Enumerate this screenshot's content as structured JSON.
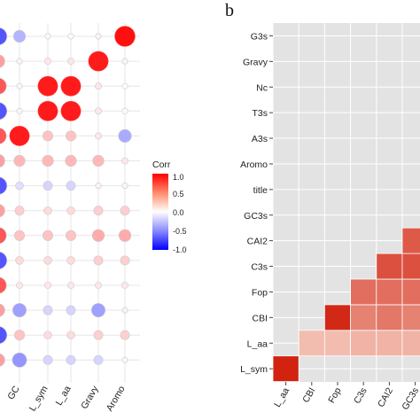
{
  "panel_label": "b",
  "legend": {
    "title": "Corr",
    "ticks": [
      "1.0",
      "0.5",
      "0.0",
      "-0.5",
      "-1.0"
    ]
  },
  "colors": {
    "negative": "#2b2bff",
    "neutral": "#ffffff",
    "positive": "#ff0f0f",
    "panel_bg": "#e3e3e3",
    "grid": "#ffffff",
    "text": "#222222"
  },
  "chart_data": [
    {
      "type": "scatter",
      "subtype": "correlogram",
      "title": "",
      "x": [
        "GC",
        "L_sym",
        "L_aa",
        "Gravy",
        "Aromo"
      ],
      "rows": [
        [
          -0.35,
          0.03,
          0.02,
          0.05,
          1.0
        ],
        [
          0.05,
          0.1,
          0.1,
          0.95,
          0.05
        ],
        [
          0.05,
          0.95,
          0.95,
          0.1,
          0.02
        ],
        [
          0.05,
          0.95,
          0.95,
          0.1,
          0.02
        ],
        [
          0.95,
          0.25,
          0.25,
          0.1,
          -0.4
        ],
        [
          0.3,
          0.3,
          0.3,
          0.3,
          0.1
        ],
        [
          -0.15,
          -0.2,
          -0.2,
          0.05,
          0.05
        ],
        [
          0.2,
          0.15,
          0.15,
          0.2,
          0.2
        ],
        [
          0.25,
          0.25,
          0.25,
          0.35,
          0.35
        ],
        [
          0.15,
          0.15,
          0.15,
          0.2,
          0.2
        ],
        [
          0.1,
          0.1,
          0.1,
          0.1,
          0.1
        ],
        [
          -0.45,
          -0.2,
          -0.2,
          -0.45,
          -0.05
        ],
        [
          0.25,
          0.15,
          0.15,
          0.2,
          0.2
        ],
        [
          -0.5,
          -0.2,
          -0.2,
          -0.2,
          0.05
        ]
      ],
      "legend_placement": "right",
      "color_range": [
        -1.0,
        1.0
      ]
    },
    {
      "type": "heatmap",
      "title": "",
      "x": [
        "L_aa",
        "CBI",
        "Fop",
        "C3s",
        "CAI2",
        "GC3s"
      ],
      "y": [
        "G3s",
        "Gravy",
        "Nc",
        "T3s",
        "A3s",
        "Aromo",
        "title",
        "GC3s",
        "CAI2",
        "C3s",
        "Fop",
        "CBI",
        "L_aa",
        "L_sym"
      ],
      "cells": [
        {
          "row": "L_sym",
          "col": "L_aa",
          "value": 0.98
        },
        {
          "row": "L_aa",
          "col": "CBI",
          "value": 0.2
        },
        {
          "row": "L_aa",
          "col": "Fop",
          "value": 0.2
        },
        {
          "row": "L_aa",
          "col": "C3s",
          "value": 0.25
        },
        {
          "row": "L_aa",
          "col": "CAI2",
          "value": 0.25
        },
        {
          "row": "L_aa",
          "col": "GC3s",
          "value": 0.25
        },
        {
          "row": "CBI",
          "col": "Fop",
          "value": 0.95
        },
        {
          "row": "CBI",
          "col": "C3s",
          "value": 0.5
        },
        {
          "row": "CBI",
          "col": "CAI2",
          "value": 0.55
        },
        {
          "row": "CBI",
          "col": "GC3s",
          "value": 0.5
        },
        {
          "row": "Fop",
          "col": "C3s",
          "value": 0.6
        },
        {
          "row": "Fop",
          "col": "CAI2",
          "value": 0.6
        },
        {
          "row": "Fop",
          "col": "GC3s",
          "value": 0.6
        },
        {
          "row": "C3s",
          "col": "CAI2",
          "value": 0.75
        },
        {
          "row": "C3s",
          "col": "GC3s",
          "value": 0.75
        },
        {
          "row": "CAI2",
          "col": "GC3s",
          "value": 0.7
        }
      ],
      "grid": true
    }
  ]
}
